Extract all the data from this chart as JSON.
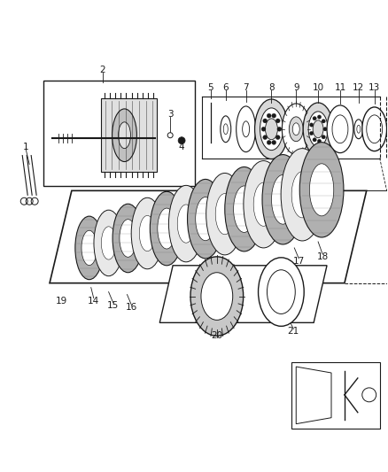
{
  "bg_color": "#ffffff",
  "fig_width": 4.38,
  "fig_height": 5.33,
  "dark": "#1a1a1a",
  "gray": "#888888",
  "light_gray": "#cccccc"
}
